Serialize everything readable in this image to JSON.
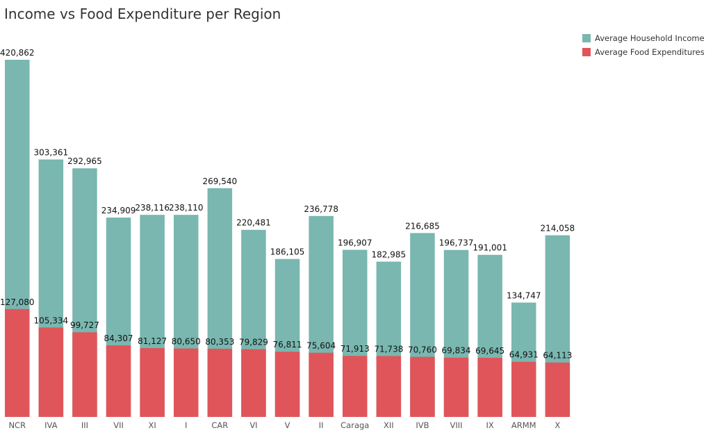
{
  "chart_data": {
    "type": "bar",
    "title": "Income vs Food Expenditure per Region",
    "xlabel": "",
    "ylabel": "",
    "categories": [
      "NCR",
      "IVA",
      "III",
      "VII",
      "XI",
      "I",
      "CAR",
      "VI",
      "V",
      "II",
      "Caraga",
      "XII",
      "IVB",
      "VIII",
      "IX",
      "ARMM",
      "X"
    ],
    "series": [
      {
        "name": "Average Household Income",
        "color": "#79b7b0",
        "values": [
          420862,
          303361,
          292965,
          234909,
          238116,
          238110,
          269540,
          220481,
          186105,
          236778,
          196907,
          182985,
          216685,
          196737,
          191001,
          134747,
          214058
        ]
      },
      {
        "name": "Average Food Expenditures",
        "color": "#e05559",
        "values": [
          127080,
          105334,
          99727,
          84307,
          81127,
          80650,
          80353,
          79829,
          76811,
          75604,
          71913,
          71738,
          70760,
          69834,
          69645,
          64931,
          64113
        ]
      }
    ],
    "grid": false,
    "legend_position": "top-right",
    "ylim": [
      0,
      420862
    ]
  }
}
